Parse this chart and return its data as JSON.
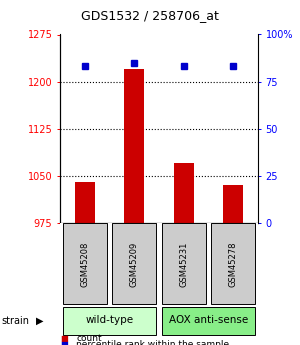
{
  "title": "GDS1532 / 258706_at",
  "samples": [
    "GSM45208",
    "GSM45209",
    "GSM45231",
    "GSM45278"
  ],
  "bar_values": [
    1040,
    1220,
    1070,
    1035
  ],
  "dot_values": [
    83,
    85,
    83,
    83
  ],
  "bar_color": "#cc0000",
  "dot_color": "#0000cc",
  "ylim_left": [
    975,
    1275
  ],
  "ylim_right": [
    0,
    100
  ],
  "yticks_left": [
    975,
    1050,
    1125,
    1200,
    1275
  ],
  "yticks_right": [
    0,
    25,
    50,
    75,
    100
  ],
  "ytick_labels_right": [
    "0",
    "25",
    "50",
    "75",
    "100%"
  ],
  "grid_values": [
    1200,
    1125,
    1050
  ],
  "bar_base": 975,
  "bar_width": 0.4,
  "group_defs": [
    {
      "label": "wild-type",
      "start": 0,
      "end": 1,
      "color": "#ccffcc"
    },
    {
      "label": "AOX anti-sense",
      "start": 2,
      "end": 3,
      "color": "#88ee88"
    }
  ],
  "sample_box_color": "#cccccc",
  "legend_items": [
    {
      "color": "#cc0000",
      "label": "count"
    },
    {
      "color": "#0000cc",
      "label": "percentile rank within the sample"
    }
  ],
  "title_fontsize": 9,
  "tick_fontsize": 7,
  "sample_fontsize": 6,
  "group_fontsize": 7.5,
  "legend_fontsize": 6.5
}
